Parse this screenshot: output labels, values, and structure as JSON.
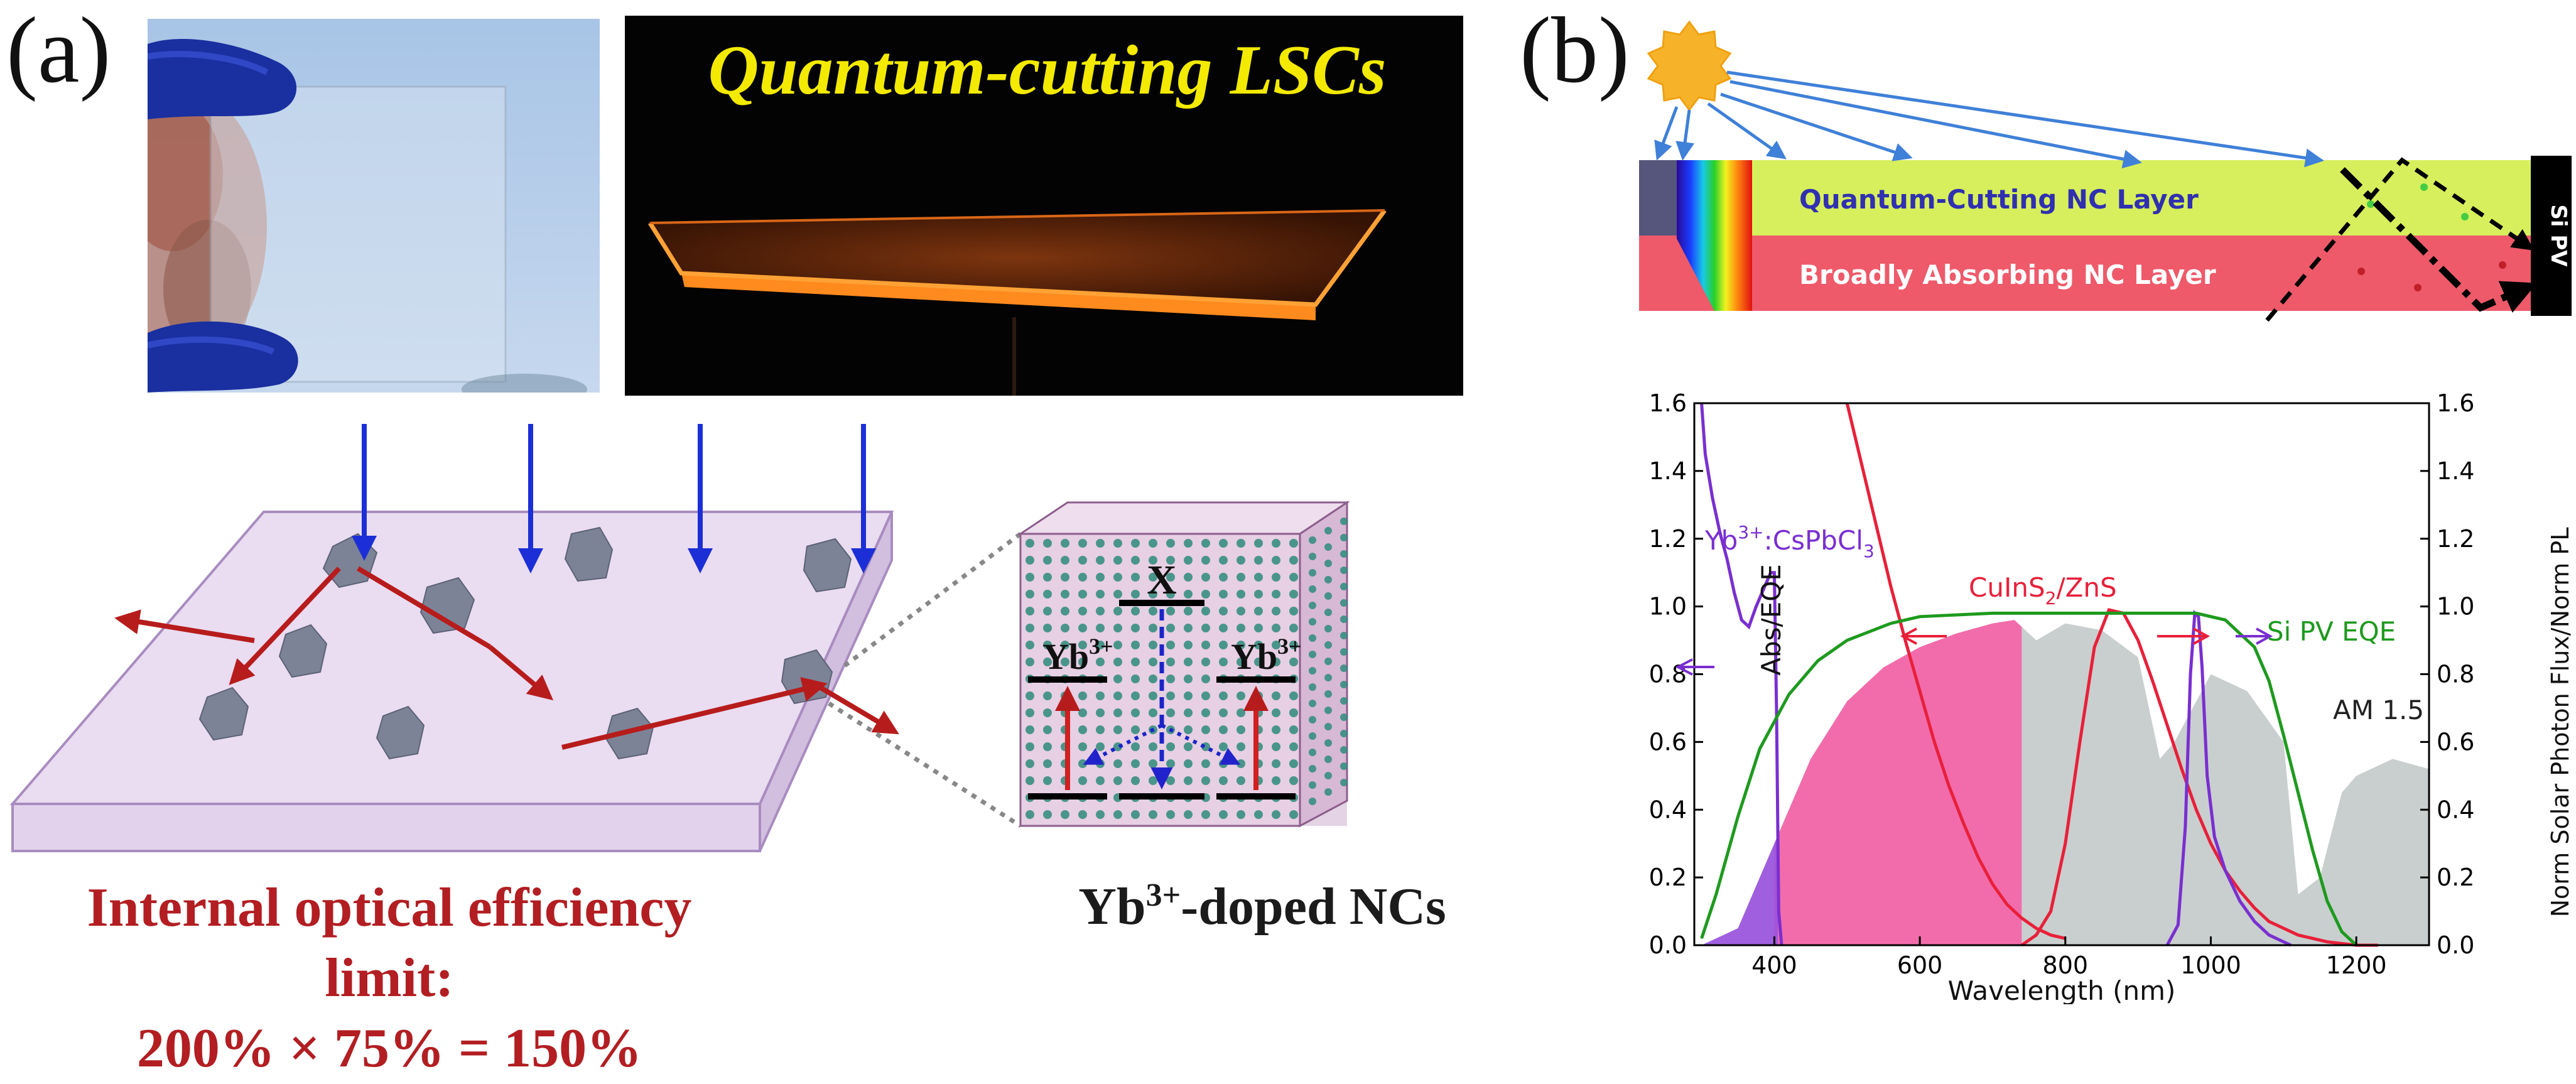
{
  "panel_a": {
    "letter": "(a)",
    "photo_title": "Quantum-cutting LSCs",
    "schematic": {
      "level_top": "X",
      "level_left": "Yb",
      "level_left_sup": "3+",
      "level_right": "Yb",
      "level_right_sup": "3+"
    },
    "efficiency_line1": "Internal optical efficiency limit:",
    "efficiency_line2": "200% × 75% = 150%",
    "nc_label_pre": "Yb",
    "nc_label_sup": "3+",
    "nc_label_post": "-doped NCs"
  },
  "panel_b": {
    "letter": "(b)",
    "layer_top": "Quantum-Cutting NC Layer",
    "layer_bottom": "Broadly Absorbing NC Layer",
    "pv_label": "Si PV",
    "colors": {
      "top_layer": "#d7ef5c",
      "bottom_layer": "#ee5a6a",
      "ray": "#3f80d8",
      "cspbcl3": "#7a2fd0",
      "cuins2": "#e8203a",
      "eqe": "#1e9a1e",
      "am15": "#c9cfce",
      "cuins2_fill": "#f26cac"
    }
  },
  "chart_data": {
    "type": "line",
    "xlabel": "Wavelength (nm)",
    "ylabel_left": "Abs/EQE",
    "ylabel_right": "Norm Solar Photon Flux/Norm PL",
    "xlim": [
      290,
      1300
    ],
    "ylim": [
      0,
      1.6
    ],
    "x_ticks": [
      "400",
      "600",
      "800",
      "1000",
      "1200"
    ],
    "y_ticks": [
      "0.0",
      "0.2",
      "0.4",
      "0.6",
      "0.8",
      "1.0",
      "1.2",
      "1.4",
      "1.6"
    ],
    "annotations": {
      "yb_label_pre": "Yb",
      "yb_label_sup": "3+",
      "yb_label_mid": ":CsPbCl",
      "yb_label_sub": "3",
      "cu_label_pre": "CuInS",
      "cu_label_sub": "2",
      "cu_label_post": "/ZnS",
      "eqe_label": "Si PV EQE",
      "am_label": "AM 1.5"
    },
    "series": [
      {
        "name": "Yb3+:CsPbCl3 absorption",
        "axis": "left",
        "x": [
          300,
          305,
          315,
          325,
          335,
          345,
          355,
          365,
          375,
          385,
          395,
          400,
          403,
          406,
          410
        ],
        "y": [
          1.6,
          1.45,
          1.32,
          1.22,
          1.14,
          1.04,
          0.96,
          0.94,
          1.0,
          1.05,
          1.1,
          1.1,
          0.7,
          0.1,
          0.0
        ]
      },
      {
        "name": "CuInS2/ZnS absorption",
        "axis": "left",
        "x": [
          500,
          520,
          540,
          560,
          580,
          600,
          620,
          640,
          660,
          680,
          700,
          720,
          740,
          760,
          780,
          800
        ],
        "y": [
          1.6,
          1.42,
          1.24,
          1.06,
          0.9,
          0.75,
          0.6,
          0.47,
          0.36,
          0.26,
          0.18,
          0.12,
          0.08,
          0.05,
          0.03,
          0.02
        ]
      },
      {
        "name": "CuInS2/ZnS PL",
        "axis": "right",
        "x": [
          740,
          760,
          780,
          800,
          820,
          840,
          860,
          880,
          900,
          920,
          940,
          960,
          980,
          1000,
          1020,
          1040,
          1060,
          1080,
          1100,
          1120,
          1140,
          1160,
          1180,
          1200,
          1230
        ],
        "y": [
          0.0,
          0.03,
          0.1,
          0.3,
          0.6,
          0.88,
          0.99,
          0.98,
          0.9,
          0.78,
          0.65,
          0.52,
          0.4,
          0.3,
          0.22,
          0.16,
          0.11,
          0.07,
          0.05,
          0.03,
          0.02,
          0.01,
          0.005,
          0.0,
          0.0
        ]
      },
      {
        "name": "Yb3+ PL",
        "axis": "right",
        "x": [
          940,
          955,
          965,
          972,
          978,
          983,
          988,
          995,
          1005,
          1020,
          1040,
          1060,
          1080,
          1100,
          1110
        ],
        "y": [
          0.0,
          0.06,
          0.35,
          0.8,
          0.98,
          0.97,
          0.82,
          0.5,
          0.32,
          0.22,
          0.13,
          0.07,
          0.03,
          0.01,
          0.0
        ]
      },
      {
        "name": "Si PV EQE",
        "axis": "left",
        "x": [
          300,
          320,
          350,
          380,
          420,
          460,
          500,
          560,
          600,
          700,
          800,
          900,
          980,
          1020,
          1060,
          1080,
          1100,
          1120,
          1140,
          1160,
          1180,
          1200
        ],
        "y": [
          0.02,
          0.15,
          0.38,
          0.58,
          0.74,
          0.84,
          0.9,
          0.95,
          0.97,
          0.98,
          0.98,
          0.98,
          0.98,
          0.96,
          0.88,
          0.78,
          0.62,
          0.45,
          0.28,
          0.13,
          0.04,
          0.0
        ]
      },
      {
        "name": "AM 1.5 photon flux",
        "axis": "right",
        "x": [
          300,
          350,
          400,
          450,
          500,
          550,
          600,
          650,
          700,
          730,
          760,
          800,
          850,
          900,
          930,
          950,
          1000,
          1050,
          1100,
          1120,
          1150,
          1180,
          1200,
          1250,
          1300
        ],
        "y": [
          0.0,
          0.05,
          0.3,
          0.55,
          0.72,
          0.82,
          0.88,
          0.92,
          0.95,
          0.96,
          0.9,
          0.95,
          0.93,
          0.85,
          0.55,
          0.6,
          0.8,
          0.75,
          0.6,
          0.15,
          0.2,
          0.45,
          0.5,
          0.55,
          0.52
        ]
      }
    ]
  }
}
